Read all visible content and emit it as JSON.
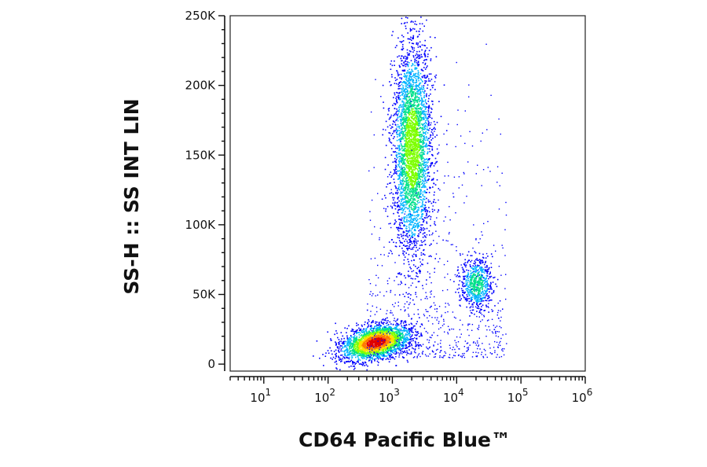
{
  "chart_data": {
    "type": "scatter",
    "subtype": "flow-cytometry-density-dot-plot",
    "xlabel": "CD64 Pacific Blue™",
    "ylabel": "SS-H :: SS INT LIN",
    "x_scale": "log",
    "xlim": [
      3,
      1000000
    ],
    "ylim": [
      -5000,
      250000
    ],
    "y_ticks": [
      {
        "value": 0,
        "label": "0"
      },
      {
        "value": 50000,
        "label": "50K"
      },
      {
        "value": 100000,
        "label": "100K"
      },
      {
        "value": 150000,
        "label": "150K"
      },
      {
        "value": 200000,
        "label": "200K"
      },
      {
        "value": 250000,
        "label": "250K"
      }
    ],
    "x_ticks": [
      {
        "value": 10,
        "base": "10",
        "exp": "1"
      },
      {
        "value": 100,
        "base": "10",
        "exp": "2"
      },
      {
        "value": 1000,
        "base": "10",
        "exp": "3"
      },
      {
        "value": 10000,
        "base": "10",
        "exp": "4"
      },
      {
        "value": 100000,
        "base": "10",
        "exp": "5"
      },
      {
        "value": 1000000,
        "base": "10",
        "exp": "6"
      }
    ],
    "grid": false,
    "populations": [
      {
        "center_x": 550,
        "center_y": 16000,
        "spread_log_x": 0.2,
        "spread_y": 6500,
        "peak_density": "high"
      },
      {
        "center_x": 2000,
        "center_y": 155000,
        "spread_log_x": 0.15,
        "spread_y": 38000,
        "peak_density": "medium"
      },
      {
        "center_x": 20000,
        "center_y": 58000,
        "spread_log_x": 0.12,
        "spread_y": 9000,
        "peak_density": "low"
      }
    ],
    "density_colormap": [
      "#0000ff",
      "#00b4ff",
      "#00e08a",
      "#7dff00",
      "#ffe000",
      "#ff7a00",
      "#e00000"
    ]
  }
}
